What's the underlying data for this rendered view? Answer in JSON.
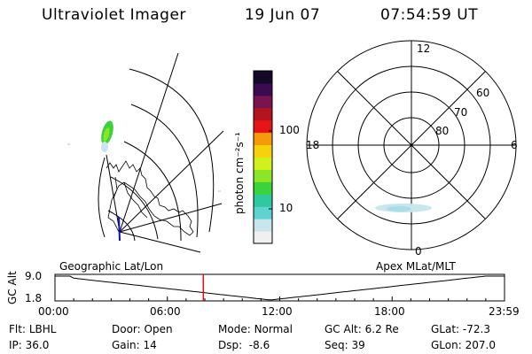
{
  "header": {
    "instrument": "Ultraviolet Imager",
    "date": "19 Jun 07",
    "time": "07:54:59 UT"
  },
  "colorbar": {
    "unit_label": "photon cm⁻²s⁻¹",
    "ticks": [
      "100",
      "10"
    ],
    "colors": [
      "#f0f0f0",
      "#c8e6ec",
      "#5fd2d2",
      "#2fc8a0",
      "#3cd23c",
      "#8ce628",
      "#d2f01e",
      "#f5d20a",
      "#f59a0a",
      "#e61414",
      "#b4141e",
      "#781450",
      "#3c0a50",
      "#140a28"
    ]
  },
  "geo_map": {
    "label": "Geographic Lat/Lon"
  },
  "polar_plot": {
    "label": "Apex MLat/MLT",
    "mlt_labels": {
      "top": "12",
      "right": "6",
      "bottom": "0",
      "left": "18"
    },
    "lat_labels": [
      "60",
      "70",
      "80"
    ]
  },
  "alt_plot": {
    "ylabel": "GC Alt",
    "yticks": [
      "9.0",
      "1.8"
    ],
    "xticks": [
      "00:00",
      "06:00",
      "12:00",
      "18:00",
      "23:59"
    ],
    "current_time_hours": 7.92
  },
  "status": {
    "row1": [
      {
        "label": "Flt:",
        "value": "LBHL"
      },
      {
        "label": "Door:",
        "value": "Open"
      },
      {
        "label": "Mode:",
        "value": "Normal"
      },
      {
        "label": "GC Alt:",
        "value": "6.2 Re"
      },
      {
        "label": "GLat:",
        "value": "-72.3"
      }
    ],
    "row2": [
      {
        "label": "IP:",
        "value": "36.0"
      },
      {
        "label": "Gain:",
        "value": "14"
      },
      {
        "label": "Dsp:",
        "value": "-8.6"
      },
      {
        "label": "Seq:",
        "value": "39"
      },
      {
        "label": "GLon:",
        "value": "207.0"
      }
    ]
  }
}
